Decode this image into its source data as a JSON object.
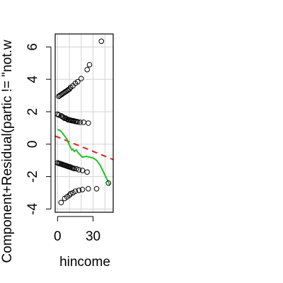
{
  "chart_data": {
    "type": "scatter",
    "title": "",
    "xlabel": "hincome",
    "ylabel": "Component+Residual(partic != \"not.w",
    "xlim": [
      -2,
      47
    ],
    "ylim": [
      -4.2,
      6.8
    ],
    "x_ticks": [
      {
        "value": 0,
        "label": "0"
      },
      {
        "value": 30,
        "label": "30"
      }
    ],
    "x_minor_ticks": [
      10,
      20,
      40
    ],
    "y_ticks": [
      {
        "value": -4,
        "label": "-4"
      },
      {
        "value": -2,
        "label": "-2"
      },
      {
        "value": 0,
        "label": "0"
      },
      {
        "value": 2,
        "label": "2"
      },
      {
        "value": 4,
        "label": "4"
      },
      {
        "value": 6,
        "label": "6"
      }
    ],
    "grid": true,
    "colors": {
      "points": "#000000",
      "linear_fit": "#e32020",
      "smooth": "#22c122",
      "grid": "#d3d3d3"
    },
    "points": [
      [
        1,
        2.95
      ],
      [
        2,
        3.0
      ],
      [
        3,
        3.05
      ],
      [
        4,
        3.1
      ],
      [
        5,
        3.15
      ],
      [
        6,
        3.2
      ],
      [
        7,
        3.25
      ],
      [
        8,
        3.3
      ],
      [
        9,
        3.35
      ],
      [
        10,
        3.4
      ],
      [
        11,
        3.5
      ],
      [
        13,
        3.6
      ],
      [
        15,
        3.75
      ],
      [
        17,
        3.85
      ],
      [
        20,
        4.05
      ],
      [
        25,
        4.6
      ],
      [
        27,
        4.9
      ],
      [
        37,
        6.35
      ],
      [
        0,
        1.85
      ],
      [
        1,
        1.8
      ],
      [
        3,
        1.75
      ],
      [
        4,
        1.7
      ],
      [
        5,
        1.65
      ],
      [
        6,
        1.6
      ],
      [
        7,
        1.6
      ],
      [
        8,
        1.55
      ],
      [
        9,
        1.5
      ],
      [
        10,
        1.5
      ],
      [
        11,
        1.48
      ],
      [
        12,
        1.45
      ],
      [
        13,
        1.45
      ],
      [
        14,
        1.43
      ],
      [
        15,
        1.4
      ],
      [
        16,
        1.4
      ],
      [
        17,
        1.38
      ],
      [
        19,
        1.35
      ],
      [
        22,
        1.35
      ],
      [
        26,
        1.3
      ],
      [
        0,
        -1.15
      ],
      [
        1,
        -1.18
      ],
      [
        2,
        -1.2
      ],
      [
        3,
        -1.22
      ],
      [
        4,
        -1.25
      ],
      [
        5,
        -1.28
      ],
      [
        6,
        -1.3
      ],
      [
        7,
        -1.32
      ],
      [
        8,
        -1.35
      ],
      [
        9,
        -1.38
      ],
      [
        10,
        -1.4
      ],
      [
        11,
        -1.42
      ],
      [
        12,
        -1.45
      ],
      [
        13,
        -1.48
      ],
      [
        14,
        -1.5
      ],
      [
        16,
        -1.52
      ],
      [
        18,
        -1.58
      ],
      [
        21,
        -1.62
      ],
      [
        25,
        -1.72
      ],
      [
        3,
        -3.6
      ],
      [
        6,
        -3.35
      ],
      [
        8,
        -3.25
      ],
      [
        10,
        -3.15
      ],
      [
        11,
        -3.05
      ],
      [
        13,
        -3.0
      ],
      [
        15,
        -2.9
      ],
      [
        18,
        -2.85
      ],
      [
        21,
        -2.8
      ],
      [
        26,
        -2.75
      ],
      [
        33,
        -2.75
      ],
      [
        43,
        -2.4
      ]
    ],
    "linear_fit": [
      [
        -2,
        0.5
      ],
      [
        47,
        -0.95
      ]
    ],
    "smooth": [
      [
        0,
        0.9
      ],
      [
        2,
        0.85
      ],
      [
        4,
        0.7
      ],
      [
        6,
        0.5
      ],
      [
        8,
        0.3
      ],
      [
        9,
        0.1
      ],
      [
        10,
        -0.05
      ],
      [
        11,
        -0.2
      ],
      [
        12,
        -0.35
      ],
      [
        13,
        -0.3
      ],
      [
        14,
        -0.45
      ],
      [
        15,
        -0.4
      ],
      [
        16,
        -0.35
      ],
      [
        17,
        -0.5
      ],
      [
        19,
        -0.65
      ],
      [
        21,
        -0.8
      ],
      [
        24,
        -0.75
      ],
      [
        27,
        -0.8
      ],
      [
        30,
        -0.85
      ],
      [
        33,
        -1.0
      ],
      [
        36,
        -1.3
      ],
      [
        39,
        -1.75
      ],
      [
        42,
        -2.2
      ],
      [
        44,
        -2.5
      ]
    ]
  }
}
